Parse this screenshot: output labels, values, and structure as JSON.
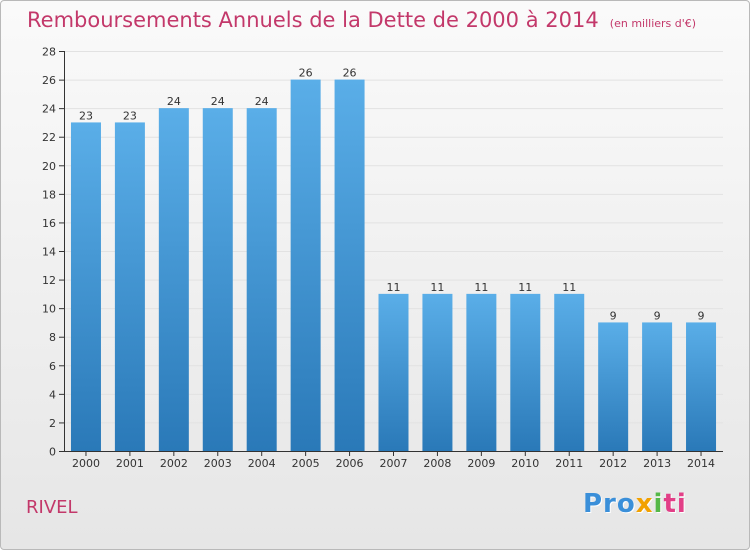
{
  "title": "Remboursements Annuels de la Dette de 2000 à 2014",
  "subtitle": "(en milliers d'€)",
  "commune": "RIVEL",
  "logo": [
    "Pro",
    "x",
    "i",
    "ti"
  ],
  "colors": {
    "bar_top": "#5aaee8",
    "bar_bottom": "#2a79b8",
    "title": "#c3386a",
    "grid": "#e2e2e2",
    "axis": "#333333"
  },
  "chart_data": {
    "type": "bar",
    "categories": [
      "2000",
      "2001",
      "2002",
      "2003",
      "2004",
      "2005",
      "2006",
      "2007",
      "2008",
      "2009",
      "2010",
      "2011",
      "2012",
      "2013",
      "2014"
    ],
    "values": [
      23,
      23,
      24,
      24,
      24,
      26,
      26,
      11,
      11,
      11,
      11,
      11,
      9,
      9,
      9
    ],
    "ylim": [
      0,
      28
    ],
    "yticks": [
      0,
      2,
      4,
      6,
      8,
      10,
      12,
      14,
      16,
      18,
      20,
      22,
      24,
      26,
      28
    ],
    "grid": true,
    "data_labels": true
  }
}
